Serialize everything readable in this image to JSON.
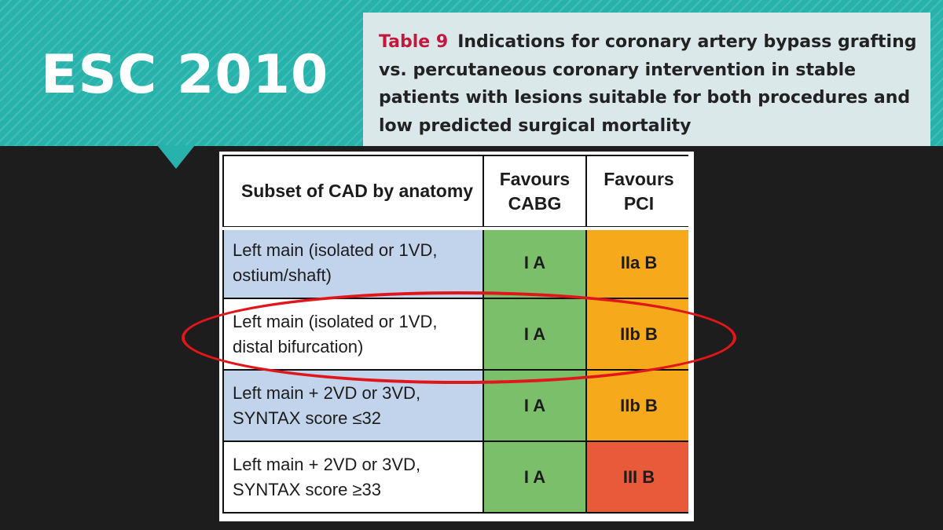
{
  "slide": {
    "title": "ESC 2010"
  },
  "caption": {
    "label": "Table 9",
    "text": "Indications for coronary artery bypass grafting vs. percutaneous coronary intervention in stable patients with lesions suitable for both procedures and low predicted surgical mortality"
  },
  "table": {
    "headers": {
      "subset": "Subset of CAD by anatomy",
      "cabg": "Favours CABG",
      "pci": "Favours PCI"
    },
    "rows": [
      {
        "subset_line1": "Left main (isolated or 1VD,",
        "subset_line2": "ostium/shaft)",
        "cabg": "I A",
        "pci": "IIa B"
      },
      {
        "subset_line1": "Left main (isolated or 1VD,",
        "subset_line2": "distal bifurcation)",
        "cabg": "I A",
        "pci": "IIb B"
      },
      {
        "subset_line1": "Left main + 2VD or 3VD,",
        "subset_line2": "SYNTAX score ≤32",
        "cabg": "I A",
        "pci": "IIb B"
      },
      {
        "subset_line1": "Left main + 2VD or 3VD,",
        "subset_line2": "SYNTAX score ≥33",
        "cabg": "I A",
        "pci": "III B"
      }
    ]
  },
  "colors": {
    "banner": "#27b3ab",
    "caption_label": "#c2183d",
    "row_alt": "#c2d4ec",
    "cabg_green": "#7cbf6b",
    "pci_orange": "#f6aa1b",
    "pci_red": "#e95a3b",
    "highlight": "#e0161b"
  },
  "annotation": {
    "shape": "ellipse",
    "highlighted_row": "Left main (isolated or 1VD, distal bifurcation)"
  }
}
